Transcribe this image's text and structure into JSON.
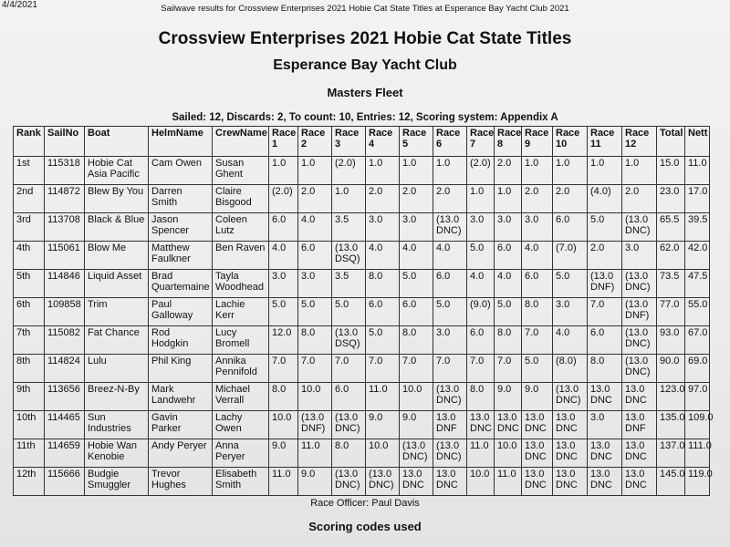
{
  "header": {
    "date": "4/4/2021",
    "print_title": "Sailwave results for Crossview Enterprises 2021 Hobie Cat State Titles at Esperance Bay Yacht Club 2021"
  },
  "title": "Crossview Enterprises 2021 Hobie Cat State Titles",
  "venue": "Esperance Bay Yacht Club",
  "fleet": "Masters Fleet",
  "summary": "Sailed: 12, Discards: 2, To count: 10, Entries: 12, Scoring system: Appendix A",
  "table": {
    "columns": [
      "Rank",
      "SailNo",
      "Boat",
      "HelmName",
      "CrewName",
      "Race 1",
      "Race 2",
      "Race 3",
      "Race 4",
      "Race 5",
      "Race 6",
      "Race 7",
      "Race 8",
      "Race 9",
      "Race 10",
      "Race 11",
      "Race 12",
      "Total",
      "Nett"
    ],
    "rows": [
      [
        "1st",
        "115318",
        "Hobie Cat Asia Pacific",
        "Cam Owen",
        "Susan Ghent",
        "1.0",
        "1.0",
        "(2.0)",
        "1.0",
        "1.0",
        "1.0",
        "(2.0)",
        "2.0",
        "1.0",
        "1.0",
        "1.0",
        "1.0",
        "15.0",
        "11.0"
      ],
      [
        "2nd",
        "114872",
        "Blew By You",
        "Darren Smith",
        "Claire Bisgood",
        "(2.0)",
        "2.0",
        "1.0",
        "2.0",
        "2.0",
        "2.0",
        "1.0",
        "1.0",
        "2.0",
        "2.0",
        "(4.0)",
        "2.0",
        "23.0",
        "17.0"
      ],
      [
        "3rd",
        "113708",
        "Black & Blue",
        "Jason Spencer",
        "Coleen Lutz",
        "6.0",
        "4.0",
        "3.5",
        "3.0",
        "3.0",
        "(13.0 DNC)",
        "3.0",
        "3.0",
        "3.0",
        "6.0",
        "5.0",
        "(13.0 DNC)",
        "65.5",
        "39.5"
      ],
      [
        "4th",
        "115061",
        "Blow Me",
        "Matthew Faulkner",
        "Ben Raven",
        "4.0",
        "6.0",
        "(13.0 DSQ)",
        "4.0",
        "4.0",
        "4.0",
        "5.0",
        "6.0",
        "4.0",
        "(7.0)",
        "2.0",
        "3.0",
        "62.0",
        "42.0"
      ],
      [
        "5th",
        "114846",
        "Liquid Asset",
        "Brad Quartemaine",
        "Tayla Woodhead",
        "3.0",
        "3.0",
        "3.5",
        "8.0",
        "5.0",
        "6.0",
        "4.0",
        "4.0",
        "6.0",
        "5.0",
        "(13.0 DNF)",
        "(13.0 DNC)",
        "73.5",
        "47.5"
      ],
      [
        "6th",
        "109858",
        "Trim",
        "Paul Galloway",
        "Lachie Kerr",
        "5.0",
        "5.0",
        "5.0",
        "6.0",
        "6.0",
        "5.0",
        "(9.0)",
        "5.0",
        "8.0",
        "3.0",
        "7.0",
        "(13.0 DNF)",
        "77.0",
        "55.0"
      ],
      [
        "7th",
        "115082",
        "Fat Chance",
        "Rod Hodgkin",
        "Lucy Bromell",
        "12.0",
        "8.0",
        "(13.0 DSQ)",
        "5.0",
        "8.0",
        "3.0",
        "6.0",
        "8.0",
        "7.0",
        "4.0",
        "6.0",
        "(13.0 DNC)",
        "93.0",
        "67.0"
      ],
      [
        "8th",
        "114824",
        "Lulu",
        "Phil King",
        "Annika Pennifold",
        "7.0",
        "7.0",
        "7.0",
        "7.0",
        "7.0",
        "7.0",
        "7.0",
        "7.0",
        "5.0",
        "(8.0)",
        "8.0",
        "(13.0 DNC)",
        "90.0",
        "69.0"
      ],
      [
        "9th",
        "113656",
        "Breez-N-By",
        "Mark Landwehr",
        "Michael Verrall",
        "8.0",
        "10.0",
        "6.0",
        "11.0",
        "10.0",
        "(13.0 DNC)",
        "8.0",
        "9.0",
        "9.0",
        "(13.0 DNC)",
        "13.0 DNC",
        "13.0 DNC",
        "123.0",
        "97.0"
      ],
      [
        "10th",
        "114465",
        "Sun Industries",
        "Gavin Parker",
        "Lachy Owen",
        "10.0",
        "(13.0 DNF)",
        "(13.0 DNC)",
        "9.0",
        "9.0",
        "13.0 DNF",
        "13.0 DNC",
        "13.0 DNC",
        "13.0 DNC",
        "13.0 DNC",
        "3.0",
        "13.0 DNF",
        "135.0",
        "109.0"
      ],
      [
        "11th",
        "114659",
        "Hobie Wan Kenobie",
        "Andy Peryer",
        "Anna Peryer",
        "9.0",
        "11.0",
        "8.0",
        "10.0",
        "(13.0 DNC)",
        "(13.0 DNC)",
        "11.0",
        "10.0",
        "13.0 DNC",
        "13.0 DNC",
        "13.0 DNC",
        "13.0 DNC",
        "137.0",
        "111.0"
      ],
      [
        "12th",
        "115666",
        "Budgie Smuggler",
        "Trevor Hughes",
        "Elisabeth Smith",
        "11.0",
        "9.0",
        "(13.0 DNC)",
        "(13.0 DNC)",
        "13.0 DNC",
        "13.0 DNC",
        "10.0",
        "11.0",
        "13.0 DNC",
        "13.0 DNC",
        "13.0 DNC",
        "13.0 DNC",
        "145.0",
        "119.0"
      ]
    ]
  },
  "footer": {
    "race_officer": "Race Officer: Paul Davis",
    "scoring_codes_heading": "Scoring codes used"
  }
}
